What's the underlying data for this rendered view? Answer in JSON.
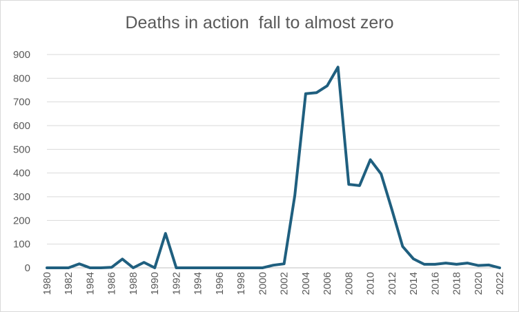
{
  "chart_data": {
    "type": "line",
    "title": "Deaths in action  fall to almost zero",
    "xlabel": "",
    "ylabel": "",
    "xlim": [
      1980,
      2022
    ],
    "ylim": [
      0,
      900
    ],
    "y_ticks": [
      0,
      100,
      200,
      300,
      400,
      500,
      600,
      700,
      800,
      900
    ],
    "x_tick_labels": [
      "1980",
      "1982",
      "1984",
      "1986",
      "1988",
      "1990",
      "1992",
      "1994",
      "1996",
      "1998",
      "2000",
      "2002",
      "2004",
      "2006",
      "2008",
      "2010",
      "2012",
      "2014",
      "2016",
      "2018",
      "2020",
      "2022"
    ],
    "grid": "horizontal",
    "legend": "none",
    "line_color": "#1f5f7f",
    "series": [
      {
        "x": [
          1980,
          1981,
          1982,
          1983,
          1984,
          1985,
          1986,
          1987,
          1988,
          1989,
          1990,
          1991,
          1992,
          1993,
          1994,
          1995,
          1996,
          1997,
          1998,
          1999,
          2000,
          2001,
          2002,
          2003,
          2004,
          2005,
          2006,
          2007,
          2008,
          2009,
          2010,
          2011,
          2012,
          2013,
          2014,
          2015,
          2016,
          2017,
          2018,
          2019,
          2020,
          2021,
          2022
        ],
        "values": [
          0,
          0,
          0,
          17,
          0,
          0,
          2,
          37,
          0,
          23,
          0,
          145,
          0,
          0,
          0,
          0,
          0,
          0,
          0,
          0,
          0,
          11,
          17,
          306,
          735,
          739,
          768,
          847,
          352,
          347,
          456,
          396,
          246,
          90,
          38,
          15,
          15,
          20,
          15,
          20,
          10,
          12,
          0
        ]
      }
    ]
  }
}
